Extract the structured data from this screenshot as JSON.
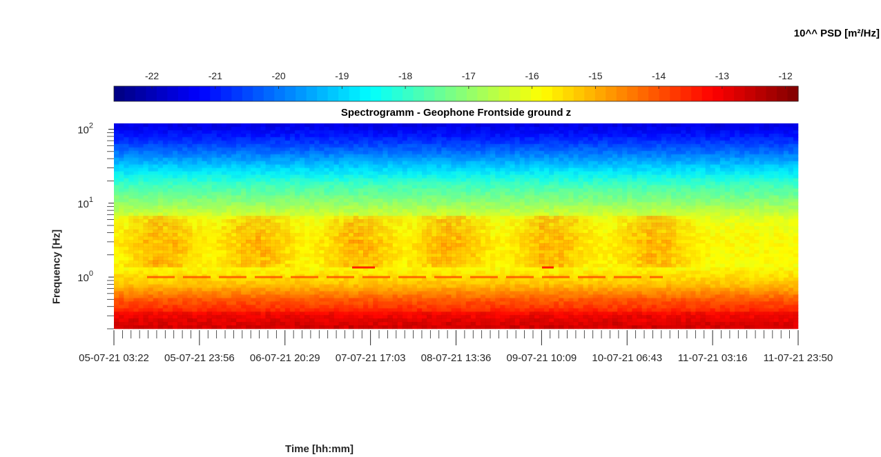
{
  "chart_data": {
    "type": "heatmap",
    "title": "Spectrogramm - Geophone Frontside ground z",
    "xlabel": "Time [hh:mm]",
    "ylabel": "Frequency [Hz]",
    "colorbar": {
      "label": "10^^ PSD [m²/Hz]",
      "range": [
        -22.6,
        -11.8
      ],
      "ticks": [
        -22,
        -21,
        -20,
        -19,
        -18,
        -17,
        -16,
        -15,
        -14,
        -13,
        -12
      ],
      "colormap": "jet"
    },
    "yscale": "log",
    "ylim": [
      0.2,
      120
    ],
    "y_ticks": [
      {
        "label": "10",
        "exp": "2",
        "value": 100
      },
      {
        "label": "10",
        "exp": "1",
        "value": 10
      },
      {
        "label": "10",
        "exp": "0",
        "value": 1
      }
    ],
    "x_tick_labels": [
      "05-07-21 03:22",
      "05-07-21 23:56",
      "06-07-21 20:29",
      "07-07-21 17:03",
      "08-07-21 13:36",
      "09-07-21 10:09",
      "10-07-21 06:43",
      "11-07-21 03:16",
      "11-07-21 23:50"
    ],
    "x_range": [
      "05-07-21 03:22",
      "11-07-21 23:50"
    ],
    "profile": [
      {
        "freq": 120,
        "log_psd": -21.6
      },
      {
        "freq": 80,
        "log_psd": -21.0
      },
      {
        "freq": 50,
        "log_psd": -20.1
      },
      {
        "freq": 30,
        "log_psd": -19.0
      },
      {
        "freq": 18,
        "log_psd": -17.9
      },
      {
        "freq": 10,
        "log_psd": -17.0
      },
      {
        "freq": 6,
        "log_psd": -16.1
      },
      {
        "freq": 3,
        "log_psd": -15.8
      },
      {
        "freq": 1.4,
        "log_psd": -15.9
      },
      {
        "freq": 0.8,
        "log_psd": -15.2
      },
      {
        "freq": 0.5,
        "log_psd": -14.1
      },
      {
        "freq": 0.3,
        "log_psd": -13.3
      },
      {
        "freq": 0.2,
        "log_psd": -12.9
      }
    ]
  }
}
